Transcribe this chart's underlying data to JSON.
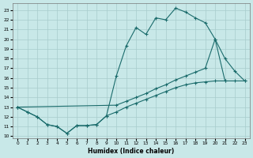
{
  "xlabel": "Humidex (Indice chaleur)",
  "bg_color": "#c8e8e8",
  "line_color": "#1a6b6b",
  "grid_color": "#a8cccc",
  "xlim": [
    -0.5,
    23.5
  ],
  "ylim": [
    9.8,
    23.7
  ],
  "xticks": [
    0,
    1,
    2,
    3,
    4,
    5,
    6,
    7,
    8,
    9,
    10,
    11,
    12,
    13,
    14,
    15,
    16,
    17,
    18,
    19,
    20,
    21,
    22,
    23
  ],
  "yticks": [
    10,
    11,
    12,
    13,
    14,
    15,
    16,
    17,
    18,
    19,
    20,
    21,
    22,
    23
  ],
  "line1_x": [
    0,
    1,
    2,
    3,
    4,
    5,
    6,
    7,
    8,
    9,
    10,
    11,
    12,
    13,
    14,
    15,
    16,
    17,
    18,
    19,
    20,
    21
  ],
  "line1_y": [
    13.0,
    12.5,
    12.0,
    11.2,
    11.0,
    10.3,
    11.1,
    11.1,
    11.2,
    12.1,
    16.2,
    19.3,
    21.2,
    20.5,
    22.2,
    22.0,
    23.2,
    22.8,
    22.2,
    21.7,
    20.0,
    15.7
  ],
  "line2_x": [
    0,
    1,
    2,
    3,
    4,
    5,
    6,
    7,
    8,
    9,
    10,
    11,
    12,
    13,
    14,
    15,
    16,
    17,
    18,
    19,
    20,
    21,
    22,
    23
  ],
  "line2_y": [
    13.0,
    12.5,
    12.0,
    11.2,
    11.0,
    10.3,
    11.1,
    11.1,
    11.2,
    12.1,
    12.5,
    13.0,
    13.4,
    13.8,
    14.2,
    14.6,
    15.0,
    15.3,
    15.5,
    15.6,
    15.7,
    15.7,
    15.7,
    15.7
  ],
  "line3_x": [
    0,
    10,
    11,
    12,
    13,
    14,
    15,
    16,
    17,
    18,
    19,
    20,
    21,
    22,
    23
  ],
  "line3_y": [
    13.0,
    13.2,
    13.6,
    14.0,
    14.4,
    14.9,
    15.3,
    15.8,
    16.2,
    16.6,
    17.0,
    20.0,
    18.0,
    16.7,
    15.7
  ]
}
